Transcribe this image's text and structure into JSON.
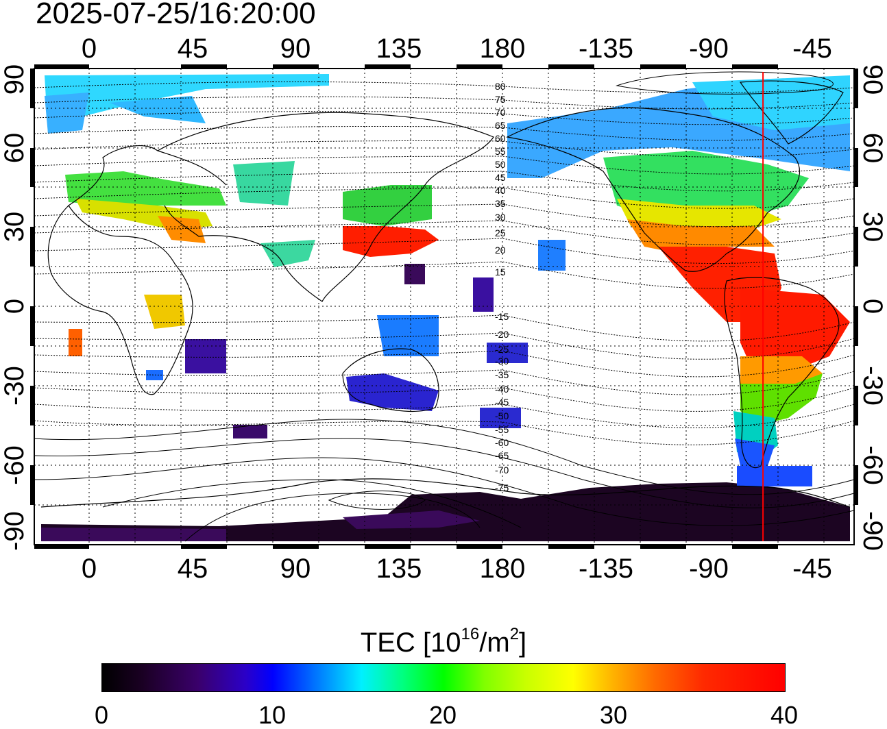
{
  "timestamp": "2025-07-25/16:20:00",
  "map": {
    "longitude_ticks": [
      "0",
      "45",
      "90",
      "135",
      "180",
      "-135",
      "-90",
      "-45"
    ],
    "latitude_ticks": [
      "90",
      "60",
      "30",
      "0",
      "-30",
      "-60",
      "-90"
    ],
    "contour_labels": [
      "80",
      "75",
      "70",
      "65",
      "60",
      "55",
      "50",
      "45",
      "40",
      "35",
      "30",
      "25",
      "20",
      "15",
      "-15",
      "-20",
      "-25",
      "-30",
      "-35",
      "-40",
      "-45",
      "-50",
      "-55",
      "-60",
      "-65",
      "-70",
      "-75"
    ],
    "meridian_marker_longitude": -64,
    "marker_color": "#ff0000"
  },
  "colorbar": {
    "title_text": "TEC  [10",
    "title_sup1": "16",
    "title_mid": "/m",
    "title_sup2": "2",
    "title_end": "]",
    "min": 0,
    "max": 40,
    "tick_labels": [
      "0",
      "10",
      "20",
      "30",
      "40"
    ],
    "colors": [
      "#000000",
      "#3a006b",
      "#0000ff",
      "#00f0ff",
      "#00ff00",
      "#ffff00",
      "#ff6a00",
      "#ff0000"
    ]
  }
}
